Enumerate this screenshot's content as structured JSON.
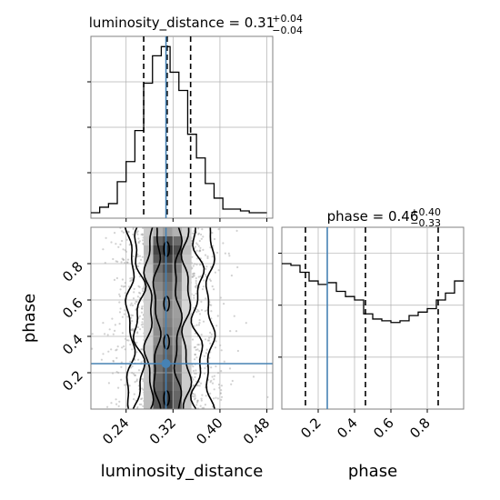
{
  "chart_data": [
    {
      "type": "histogram",
      "panel": "luminosity_distance marginal",
      "title": {
        "main": "luminosity_distance = 0.31",
        "sup": "+0.04",
        "sub": "−0.04"
      },
      "xlim": [
        0.18,
        0.49
      ],
      "bins_x": [
        0.18,
        0.195,
        0.21,
        0.225,
        0.24,
        0.255,
        0.27,
        0.285,
        0.3,
        0.315,
        0.33,
        0.345,
        0.36,
        0.375,
        0.39,
        0.405,
        0.42,
        0.435,
        0.45,
        0.465,
        0.48
      ],
      "counts": [
        3,
        6,
        8,
        20,
        31,
        48,
        74,
        89,
        94,
        80,
        70,
        46,
        33,
        19,
        11,
        5,
        5,
        4,
        3,
        3
      ],
      "quantiles": [
        0.27,
        0.31,
        0.35
      ],
      "truth": 0.308,
      "grid": true
    },
    {
      "type": "histogram",
      "panel": "phase marginal",
      "title": {
        "main": "phase = 0.46",
        "sup": "+0.40",
        "sub": "−0.33"
      },
      "xlim": [
        0.0,
        1.0
      ],
      "bins_x": [
        0,
        0.05,
        0.1,
        0.15,
        0.2,
        0.25,
        0.3,
        0.35,
        0.4,
        0.45,
        0.5,
        0.55,
        0.6,
        0.65,
        0.7,
        0.75,
        0.8,
        0.85,
        0.9,
        0.95,
        1.0
      ],
      "counts": [
        84,
        83,
        79,
        74,
        72,
        73,
        68,
        65,
        63,
        55,
        52,
        51,
        50,
        51,
        54,
        56,
        58,
        63,
        67,
        74
      ],
      "ylim": [
        0,
        105
      ],
      "quantiles": [
        0.13,
        0.46,
        0.86
      ],
      "truth": 0.25,
      "grid": true
    },
    {
      "type": "2d-density",
      "panel": "phase vs luminosity_distance",
      "xlim": [
        0.18,
        0.49
      ],
      "ylim": [
        0.0,
        1.0
      ],
      "x_ticks": [
        "0.24",
        "0.32",
        "0.40",
        "0.48"
      ],
      "x_tick_values": [
        0.24,
        0.32,
        0.4,
        0.48
      ],
      "y_ticks": [
        "0.2",
        "0.4",
        "0.6",
        "0.8"
      ],
      "y_tick_values": [
        0.2,
        0.4,
        0.6,
        0.8
      ],
      "xlabel": "luminosity_distance",
      "ylabel": "phase",
      "truth": {
        "x": 0.308,
        "y": 0.25
      },
      "grid": true
    }
  ],
  "phase_x_ticks": [
    "0.2",
    "0.4",
    "0.6",
    "0.8"
  ],
  "phase_x_tick_values": [
    0.2,
    0.4,
    0.6,
    0.8
  ],
  "phase_xlabel": "phase",
  "colors": {
    "truth": "#4682b4",
    "hist": "#000000",
    "grid": "#b0b0b0",
    "frame": "#808080"
  }
}
